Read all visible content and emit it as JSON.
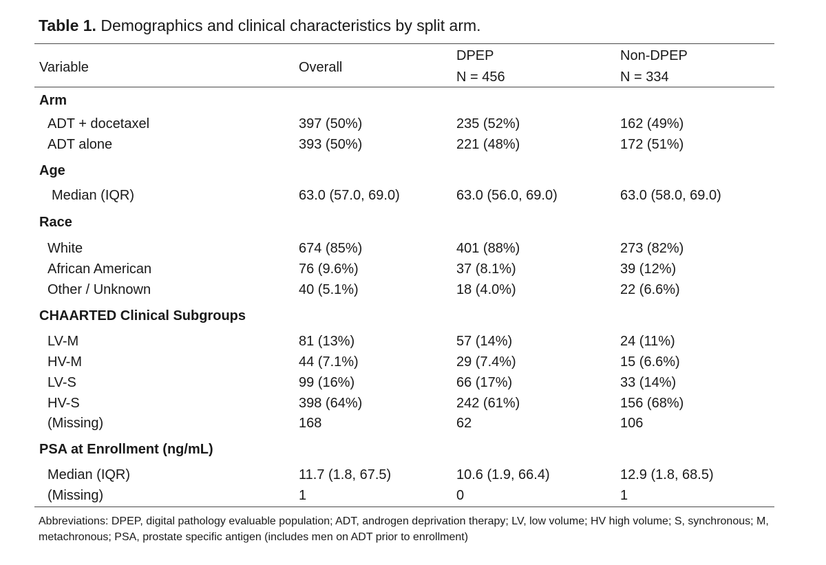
{
  "caption": {
    "label": "Table 1.",
    "text": " Demographics and clinical characteristics by split arm."
  },
  "header": {
    "variable": "Variable",
    "overall": "Overall",
    "dpep": "DPEP",
    "dpep_n": "N = 456",
    "nondpep": "Non-DPEP",
    "nondpep_n": "N = 334"
  },
  "sections": [
    {
      "title": "Arm",
      "rows": [
        {
          "label": "ADT + docetaxel",
          "overall": "397 (50%)",
          "dpep": "235 (52%)",
          "nondpep": "162 (49%)"
        },
        {
          "label": "ADT alone",
          "overall": "393 (50%)",
          "dpep": "221 (48%)",
          "nondpep": "172 (51%)"
        }
      ]
    },
    {
      "title": "Age",
      "rows": [
        {
          "label": "Median (IQR)",
          "overall": "63.0 (57.0, 69.0)",
          "dpep": "63.0 (56.0, 69.0)",
          "nondpep": "63.0 (58.0, 69.0)"
        }
      ]
    },
    {
      "title": "Race",
      "rows": [
        {
          "label": "White",
          "overall": "674 (85%)",
          "dpep": "401 (88%)",
          "nondpep": "273 (82%)"
        },
        {
          "label": "African American",
          "overall": "76 (9.6%)",
          "dpep": "37 (8.1%)",
          "nondpep": "39 (12%)"
        },
        {
          "label": "Other / Unknown",
          "overall": "40 (5.1%)",
          "dpep": "18 (4.0%)",
          "nondpep": "22 (6.6%)"
        }
      ]
    },
    {
      "title": "CHAARTED Clinical Subgroups",
      "rows": [
        {
          "label": "LV-M",
          "overall": "81 (13%)",
          "dpep": "57 (14%)",
          "nondpep": "24 (11%)"
        },
        {
          "label": "HV-M",
          "overall": "44 (7.1%)",
          "dpep": "29 (7.4%)",
          "nondpep": "15 (6.6%)"
        },
        {
          "label": "LV-S",
          "overall": "99 (16%)",
          "dpep": "66 (17%)",
          "nondpep": "33 (14%)"
        },
        {
          "label": "HV-S",
          "overall": "398 (64%)",
          "dpep": "242 (61%)",
          "nondpep": "156 (68%)"
        },
        {
          "label": "(Missing)",
          "overall": "168",
          "dpep": "62",
          "nondpep": "106"
        }
      ]
    },
    {
      "title": "PSA at Enrollment (ng/mL)",
      "rows": [
        {
          "label": "Median (IQR)",
          "overall": "11.7 (1.8, 67.5)",
          "dpep": "10.6 (1.9, 66.4)",
          "nondpep": "12.9 (1.8, 68.5)"
        },
        {
          "label": "(Missing)",
          "overall": "1",
          "dpep": "0",
          "nondpep": "1"
        }
      ]
    }
  ],
  "footnote": "Abbreviations: DPEP, digital pathology evaluable population; ADT, androgen deprivation therapy; LV, low volume; HV high volume; S, synchronous; M, metachronous; PSA, prostate specific antigen (includes men on ADT prior to enrollment)"
}
